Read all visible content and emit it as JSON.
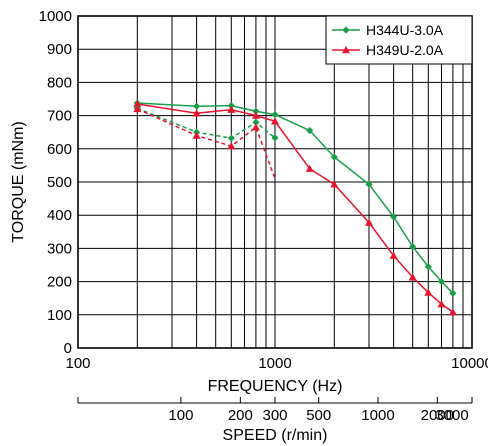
{
  "chart_data": {
    "type": "line",
    "xlabel": "FREQUENCY (Hz)",
    "ylabel": "TORQUE (mNm)",
    "xscale": "log",
    "xlim": [
      100,
      10000
    ],
    "ylim": [
      0,
      1000
    ],
    "x_ticks": [
      "100",
      "1000",
      "10000"
    ],
    "y_ticks": [
      "0",
      "100",
      "200",
      "300",
      "400",
      "500",
      "600",
      "700",
      "800",
      "900",
      "1000"
    ],
    "grid": true,
    "legend_position": "top-right",
    "speed_axis": {
      "label": "SPEED (r/min)",
      "ticks": [
        {
          "label": "100",
          "hz": 333
        },
        {
          "label": "200",
          "hz": 667
        },
        {
          "label": "300",
          "hz": 1000
        },
        {
          "label": "500",
          "hz": 1667
        },
        {
          "label": "1000",
          "hz": 3333
        },
        {
          "label": "2000",
          "hz": 6667
        },
        {
          "label": "3000",
          "hz": 10000
        }
      ]
    },
    "series": [
      {
        "name": "H344U-3.0A",
        "color": "#1a9e4a",
        "marker": "diamond",
        "x": [
          200,
          400,
          600,
          800,
          1000,
          1500,
          2000,
          3000,
          4000,
          5000,
          6000,
          7000,
          8000
        ],
        "y": [
          738,
          728,
          730,
          713,
          703,
          655,
          575,
          493,
          395,
          305,
          245,
          200,
          165
        ]
      },
      {
        "name": "H349U-2.0A",
        "color": "#e8142d",
        "marker": "triangle",
        "x": [
          200,
          400,
          600,
          800,
          1000,
          1500,
          2000,
          3000,
          4000,
          5000,
          6000,
          7000,
          8000
        ],
        "y": [
          735,
          707,
          718,
          700,
          683,
          540,
          493,
          378,
          278,
          213,
          167,
          132,
          108
        ]
      },
      {
        "name": "",
        "color": "#1a9e4a",
        "marker": "diamond",
        "dashed": true,
        "x": [
          200,
          400,
          600,
          800,
          1000
        ],
        "y": [
          722,
          650,
          632,
          680,
          633
        ]
      },
      {
        "name": "",
        "color": "#e8142d",
        "marker": "triangle",
        "dashed": true,
        "x": [
          200,
          400,
          600,
          800,
          1000
        ],
        "y": [
          720,
          640,
          608,
          665,
          510
        ]
      }
    ]
  }
}
